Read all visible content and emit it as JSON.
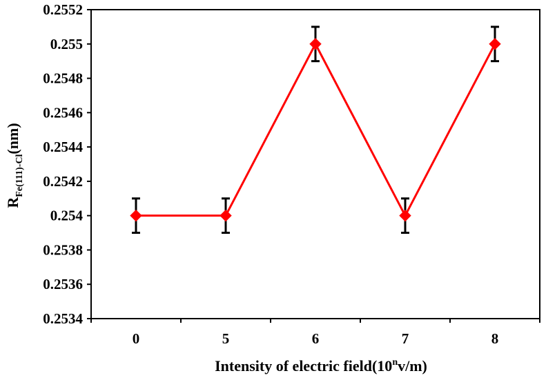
{
  "chart_data": {
    "type": "line",
    "title": "",
    "xlabel": {
      "prefix": "Intensity of electric field(10",
      "superscript": "n",
      "suffix": "v/m)"
    },
    "ylabel": {
      "prefix": "R",
      "subscript": "Fe(111)-Cl",
      "suffix": "(nm)"
    },
    "categories": [
      "0",
      "5",
      "6",
      "7",
      "8"
    ],
    "ylim": [
      0.2534,
      0.2552
    ],
    "yticks": [
      "0.2534",
      "0.2536",
      "0.2538",
      "0.254",
      "0.2542",
      "0.2544",
      "0.2546",
      "0.2548",
      "0.255",
      "0.2552"
    ],
    "series": [
      {
        "values": [
          0.254,
          0.254,
          0.255,
          0.254,
          0.255
        ],
        "error": [
          0.0001,
          0.0001,
          0.0001,
          0.0001,
          0.0001
        ],
        "color": "#ff0000",
        "errorbar_color": "#000000",
        "marker": "diamond"
      }
    ],
    "grid": false,
    "legend": "none"
  }
}
